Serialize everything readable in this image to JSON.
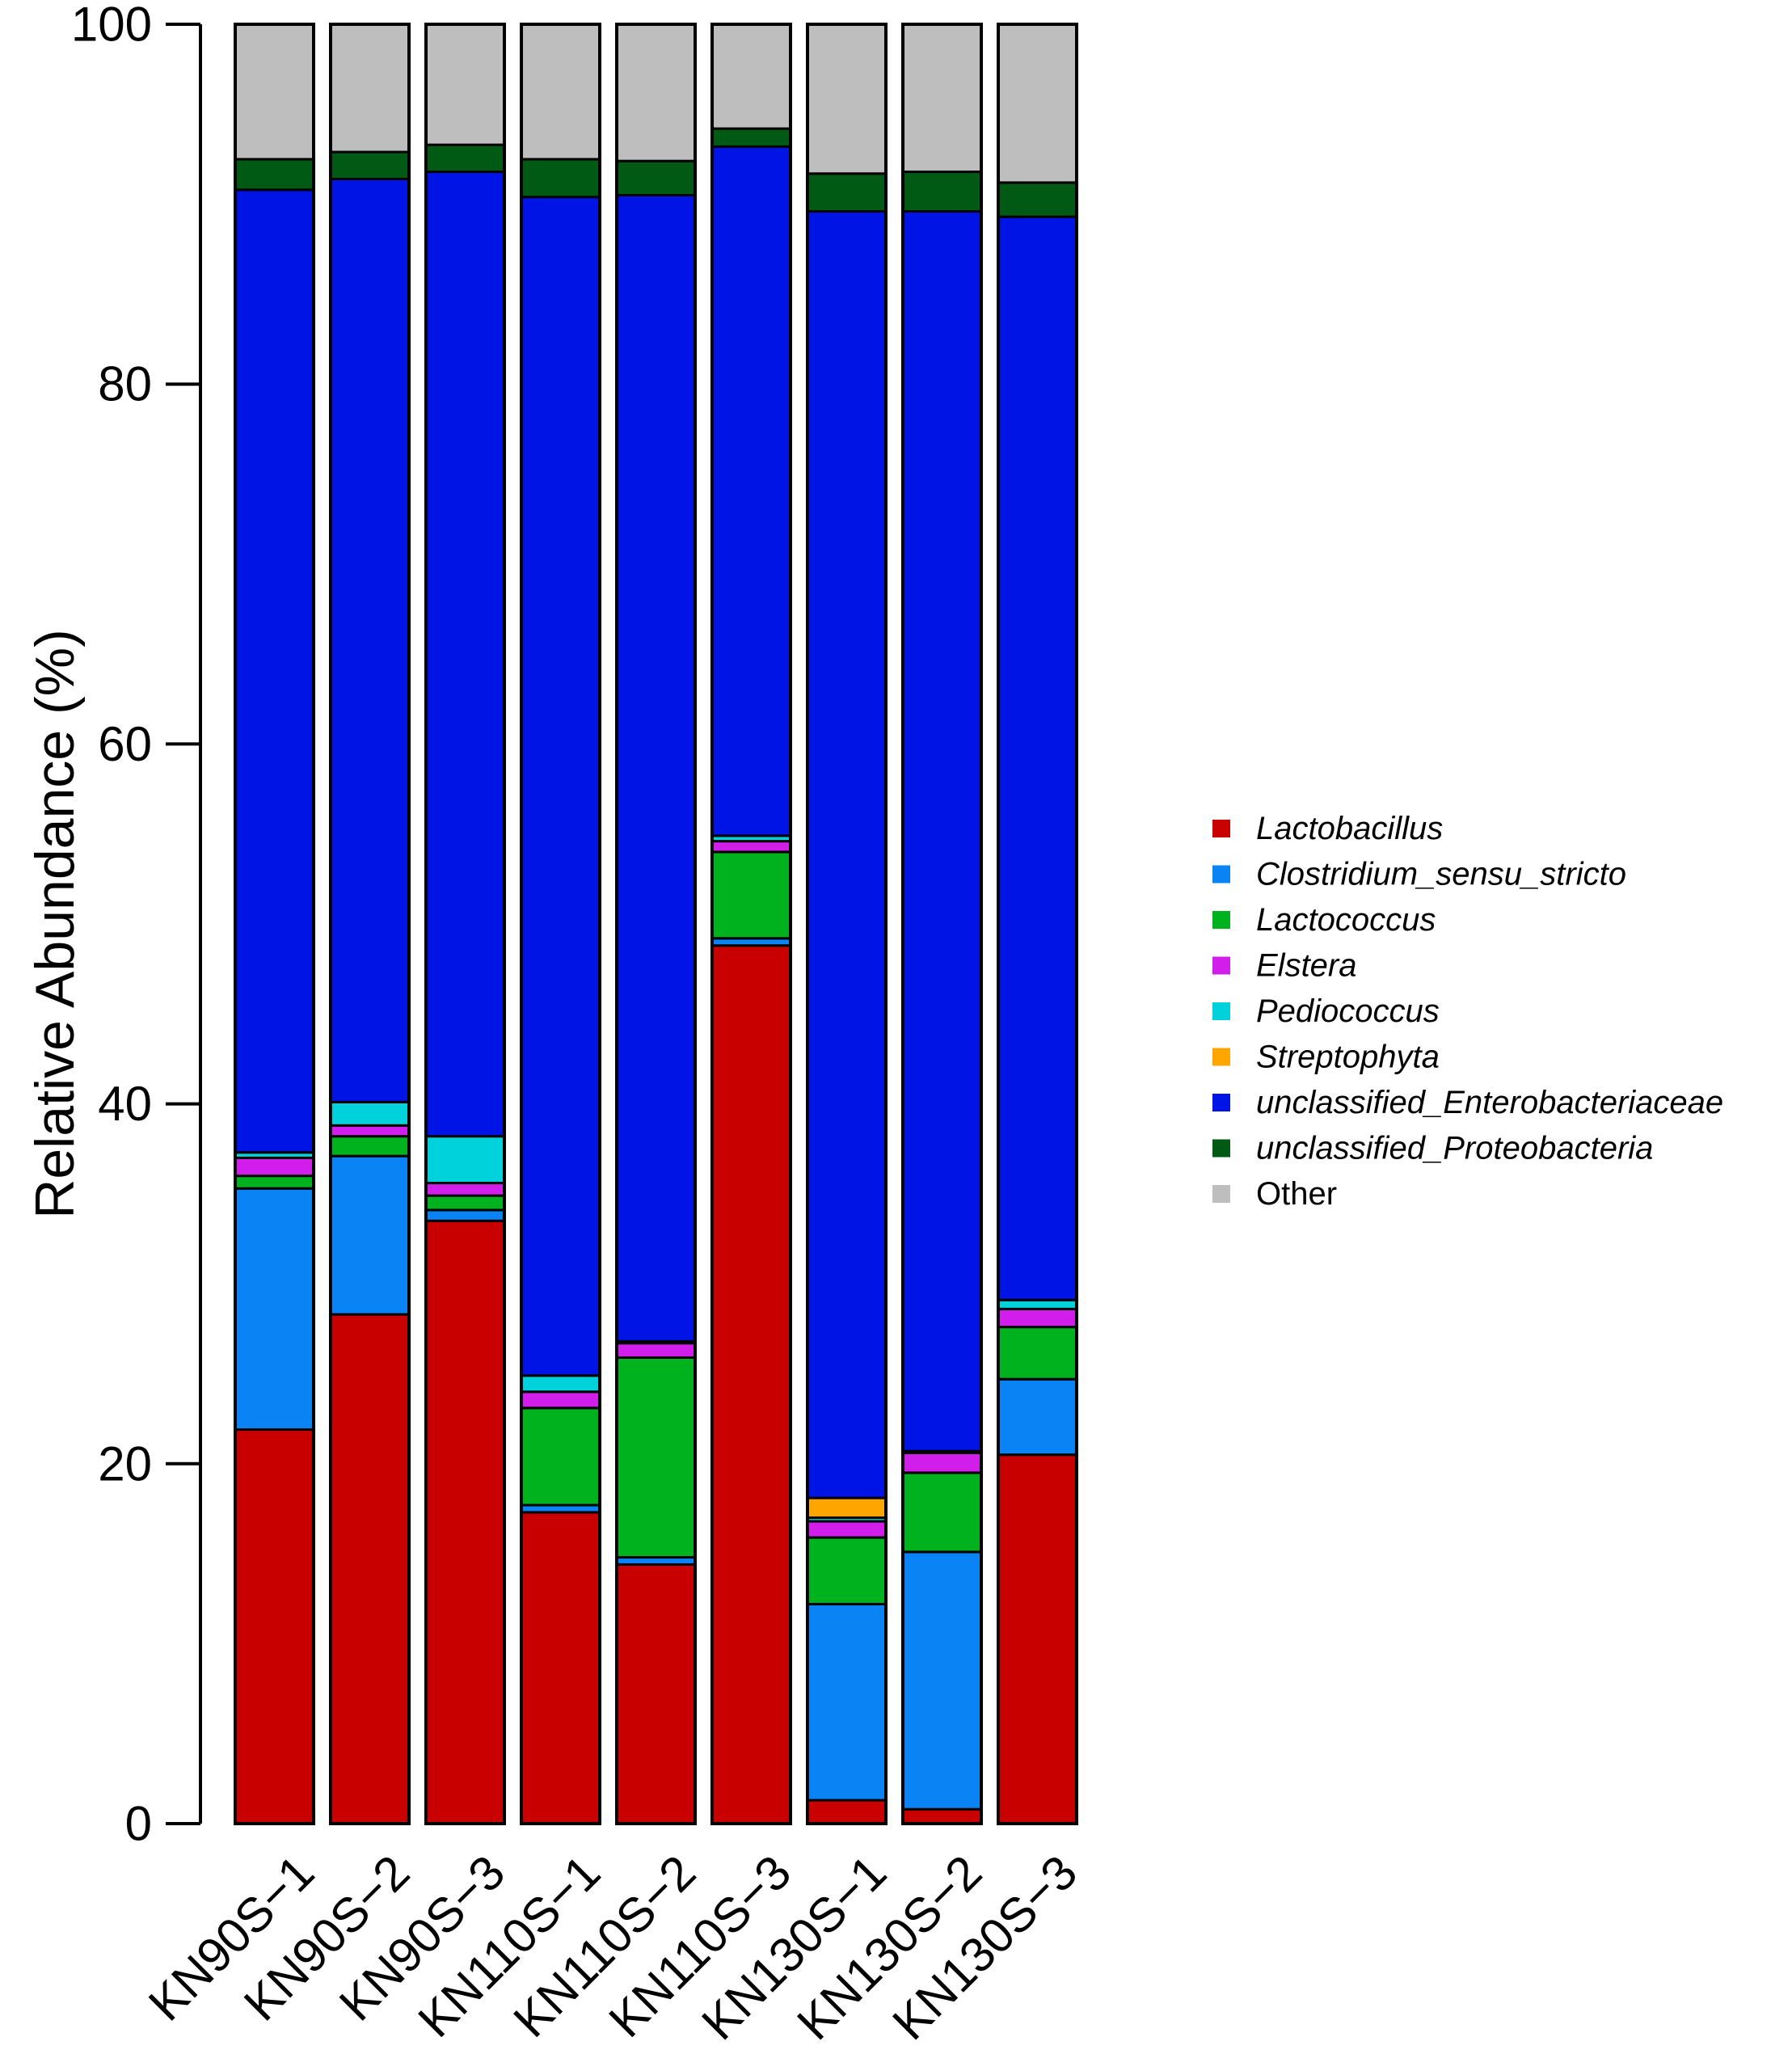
{
  "chart_data": {
    "type": "stacked-bar",
    "title": "",
    "xlabel": "",
    "ylabel": "Relative Abundance (%)",
    "ylim": [
      0,
      100
    ],
    "yticks": [
      "0",
      "20",
      "40",
      "60",
      "80",
      "100"
    ],
    "legend_position": "right",
    "categories": [
      "KN90S−1",
      "KN90S−2",
      "KN90S−3",
      "KN110S−1",
      "KN110S−2",
      "KN110S−3",
      "KN130S−1",
      "KN130S−2",
      "KN130S−3"
    ],
    "series": [
      {
        "name": "Lactobacillus",
        "italic": true,
        "color": "#C80000",
        "values": [
          21.9,
          28.3,
          33.5,
          17.3,
          14.4,
          48.8,
          1.3,
          0.8,
          20.5
        ]
      },
      {
        "name": "Clostridium_sensu_stricto",
        "italic": true,
        "color": "#0A84F5",
        "values": [
          13.4,
          8.8,
          0.6,
          0.4,
          0.4,
          0.4,
          10.9,
          14.3,
          4.2
        ]
      },
      {
        "name": "Lactococcus",
        "italic": true,
        "color": "#00B21E",
        "values": [
          0.7,
          1.1,
          0.8,
          5.4,
          11.1,
          4.8,
          3.7,
          4.4,
          2.9
        ]
      },
      {
        "name": "Elstera",
        "italic": true,
        "color": "#D21EEB",
        "values": [
          1.0,
          0.6,
          0.7,
          0.9,
          0.8,
          0.6,
          0.9,
          1.1,
          1.0
        ]
      },
      {
        "name": "Pediococcus",
        "italic": true,
        "color": "#00D2DC",
        "values": [
          0.3,
          1.3,
          2.6,
          0.9,
          0.1,
          0.3,
          0.2,
          0.1,
          0.5
        ]
      },
      {
        "name": "Streptophyta",
        "italic": true,
        "color": "#FFA500",
        "values": [
          0.0,
          0.0,
          0.0,
          0.0,
          0.0,
          0.0,
          1.1,
          0.0,
          0.0
        ]
      },
      {
        "name": "unclassified_Enterobacteriaceae",
        "italic": true,
        "color": "#0014E6",
        "values": [
          53.5,
          51.3,
          53.6,
          65.5,
          63.7,
          38.3,
          71.5,
          68.9,
          60.2
        ]
      },
      {
        "name": "unclassified_Proteobacteria",
        "italic": true,
        "color": "#005A14",
        "values": [
          1.7,
          1.5,
          1.5,
          2.1,
          1.9,
          1.0,
          2.1,
          2.2,
          1.9
        ]
      },
      {
        "name": "Other",
        "italic": false,
        "color": "#BEBEBE",
        "values": [
          7.5,
          7.1,
          6.7,
          7.5,
          7.6,
          5.8,
          8.3,
          8.2,
          8.8
        ]
      }
    ]
  }
}
